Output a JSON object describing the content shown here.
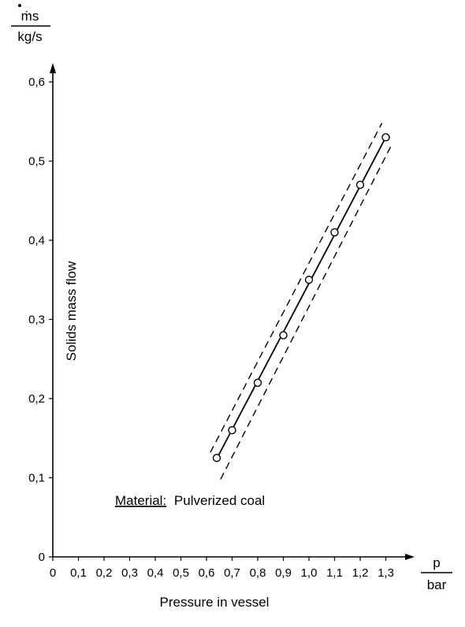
{
  "chart_data": {
    "type": "scatter",
    "title": "",
    "xlabel": "Pressure in vessel",
    "ylabel": "Solids mass flow",
    "x_unit": {
      "numerator": "p",
      "denominator": "bar"
    },
    "y_unit": {
      "numerator": "ṁs",
      "denominator": "kg/s"
    },
    "xlim": [
      0,
      1.35
    ],
    "ylim": [
      0,
      0.63
    ],
    "x_ticks": [
      0,
      0.1,
      0.2,
      0.3,
      0.4,
      0.5,
      0.6,
      0.7,
      0.8,
      0.9,
      1.0,
      1.1,
      1.2,
      1.3
    ],
    "x_tick_labels": [
      "0",
      "0,1",
      "0,2",
      "0,3",
      "0,4",
      "0,5",
      "0,6",
      "0,7",
      "0,8",
      "0,9",
      "1,0",
      "1,1",
      "1,2",
      "1,3"
    ],
    "y_ticks": [
      0,
      0.1,
      0.2,
      0.3,
      0.4,
      0.5,
      0.6
    ],
    "y_tick_labels": [
      "0",
      "0,1",
      "0,2",
      "0,3",
      "0,4",
      "0,5",
      "0,6"
    ],
    "grid": false,
    "series": [
      {
        "marker": "open-circle",
        "x": [
          0.64,
          0.7,
          0.8,
          0.9,
          1.0,
          1.1,
          1.2,
          1.3
        ],
        "y": [
          0.125,
          0.16,
          0.22,
          0.28,
          0.35,
          0.41,
          0.47,
          0.53
        ]
      }
    ],
    "fit_line": {
      "style": "solid",
      "x": [
        0.64,
        1.3
      ],
      "y": [
        0.124,
        0.53
      ]
    },
    "band_lines": [
      {
        "style": "dashed",
        "x": [
          0.615,
          1.285
        ],
        "y": [
          0.132,
          0.548
        ]
      },
      {
        "style": "dashed",
        "x": [
          0.655,
          1.325
        ],
        "y": [
          0.098,
          0.522
        ]
      }
    ],
    "annotations": [
      {
        "label": "Material:",
        "text": "Pulverized coal",
        "x": 0.25,
        "y": 0.06,
        "underline_label": true
      }
    ]
  }
}
